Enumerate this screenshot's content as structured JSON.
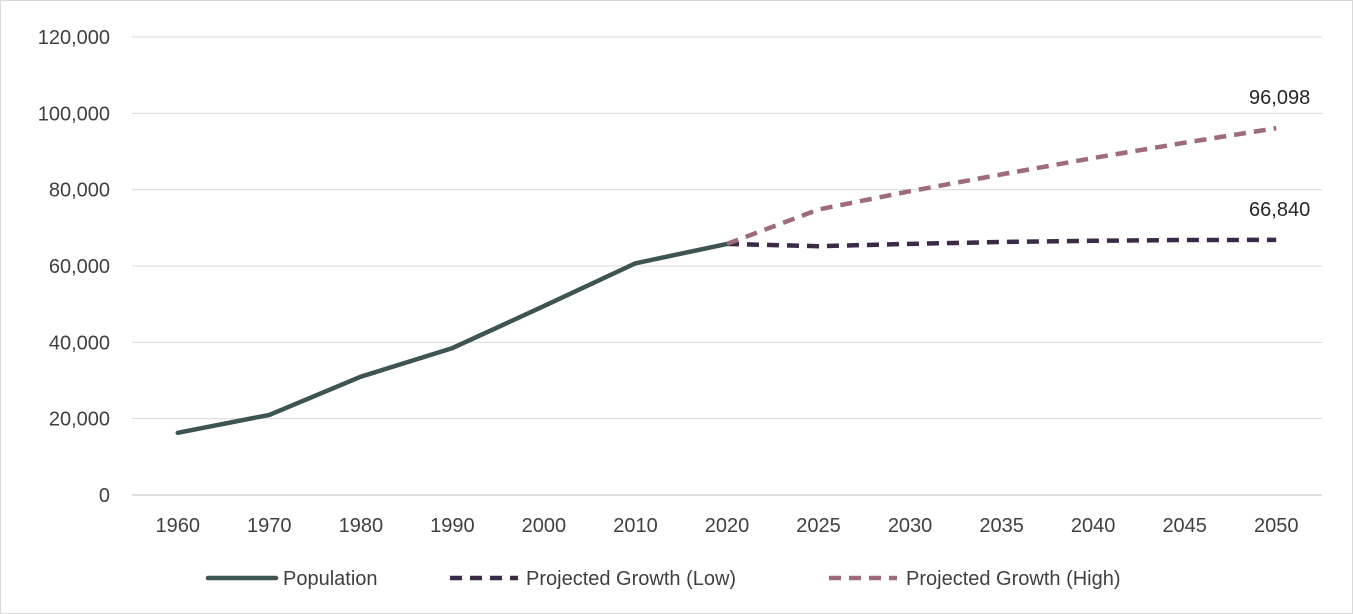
{
  "chart_data": {
    "type": "line",
    "title": "",
    "xlabel": "",
    "ylabel": "",
    "categories": [
      "1960",
      "1970",
      "1980",
      "1990",
      "2000",
      "2010",
      "2020",
      "2025",
      "2030",
      "2035",
      "2040",
      "2045",
      "2050"
    ],
    "ylim": [
      0,
      120000
    ],
    "yticks": [
      0,
      20000,
      40000,
      60000,
      80000,
      100000,
      120000
    ],
    "ytick_labels": [
      "0",
      "20,000",
      "40,000",
      "60,000",
      "80,000",
      "100,000",
      "120,000"
    ],
    "grid": "horizontal",
    "legend_position": "bottom",
    "series": [
      {
        "name": "Population",
        "color": "#3d5453",
        "style": "solid",
        "values": [
          16300,
          21000,
          31000,
          38500,
          49500,
          60700,
          65800,
          null,
          null,
          null,
          null,
          null,
          null
        ]
      },
      {
        "name": "Projected Growth (Low)",
        "color": "#3b2a45",
        "style": "dashed",
        "values": [
          null,
          null,
          null,
          null,
          null,
          null,
          65800,
          65200,
          65800,
          66300,
          66600,
          66800,
          66840
        ]
      },
      {
        "name": "Projected Growth (High)",
        "color": "#9e6b7e",
        "style": "dashed",
        "values": [
          null,
          null,
          null,
          null,
          null,
          null,
          65800,
          74800,
          79600,
          84000,
          88300,
          92300,
          96098
        ]
      }
    ],
    "data_labels": [
      {
        "series": 1,
        "category": "2050",
        "text": "66,840"
      },
      {
        "series": 2,
        "category": "2050",
        "text": "96,098"
      }
    ]
  }
}
